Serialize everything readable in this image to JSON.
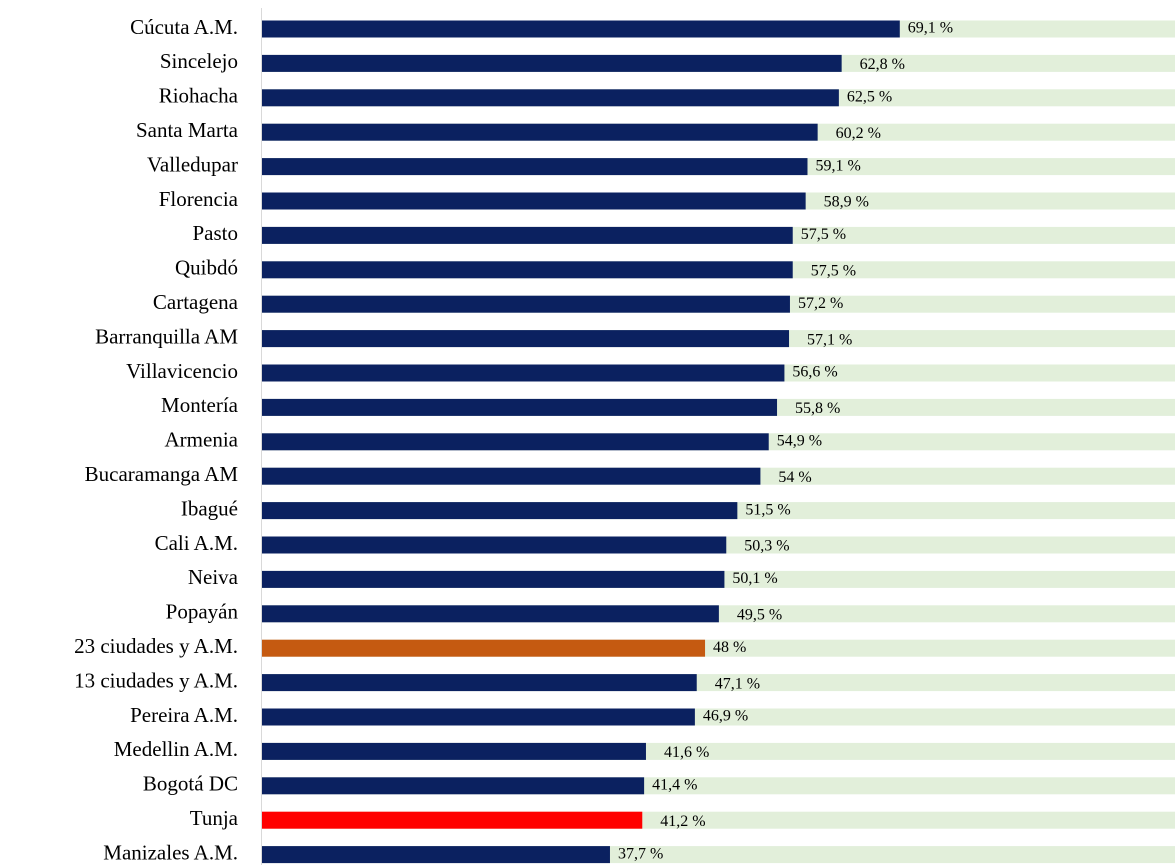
{
  "chart_data": {
    "type": "barh",
    "categories": [
      "Cúcuta A.M.",
      "Sincelejo",
      "Riohacha",
      "Santa Marta",
      "Valledupar",
      "Florencia",
      "Pasto",
      "Quibdó",
      "Cartagena",
      "Barranquilla AM",
      "Villavicencio",
      "Montería",
      "Armenia",
      "Bucaramanga AM",
      "Ibagué",
      "Cali A.M.",
      "Neiva",
      "Popayán",
      "23 ciudades y A.M.",
      "13 ciudades y A.M.",
      "Pereira A.M.",
      "Medellin A.M.",
      "Bogotá DC",
      "Tunja",
      "Manizales A.M."
    ],
    "values": [
      69.1,
      62.8,
      62.5,
      60.2,
      59.1,
      58.9,
      57.5,
      57.5,
      57.2,
      57.1,
      56.6,
      55.8,
      54.9,
      54,
      51.5,
      50.3,
      50.1,
      49.5,
      48,
      47.1,
      46.9,
      41.6,
      41.4,
      41.2,
      37.7
    ],
    "value_labels": [
      "69,1 %",
      "62,8 %",
      "62,5 %",
      "60,2 %",
      "59,1 %",
      "58,9 %",
      "57,5 %",
      "57,5 %",
      "57,2 %",
      "57,1 %",
      "56,6 %",
      "55,8 %",
      "54,9 %",
      "54 %",
      "51,5 %",
      "50,3 %",
      "50,1 %",
      "49,5 %",
      "48 %",
      "47,1 %",
      "46,9 %",
      "41,6 %",
      "41,4 %",
      "41,2 %",
      "37,7 %"
    ],
    "colors": [
      "#0b2160",
      "#0b2160",
      "#0b2160",
      "#0b2160",
      "#0b2160",
      "#0b2160",
      "#0b2160",
      "#0b2160",
      "#0b2160",
      "#0b2160",
      "#0b2160",
      "#0b2160",
      "#0b2160",
      "#0b2160",
      "#0b2160",
      "#0b2160",
      "#0b2160",
      "#0b2160",
      "#c55a11",
      "#0b2160",
      "#0b2160",
      "#0b2160",
      "#0b2160",
      "#ff0000",
      "#0b2160"
    ],
    "background_color": "#e2efda",
    "xlim": [
      0,
      100
    ]
  }
}
